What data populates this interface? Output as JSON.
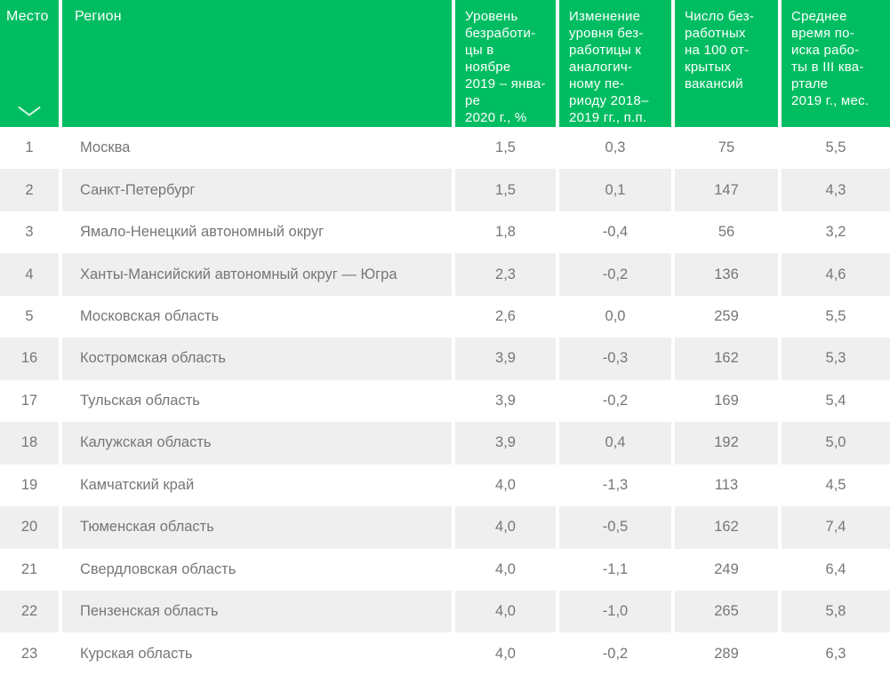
{
  "chart_data": {
    "type": "table",
    "columns": [
      {
        "key": "rank",
        "label": "Место"
      },
      {
        "key": "region",
        "label": "Регион"
      },
      {
        "key": "rate",
        "label": "Уровень\nбезработи-\nцы в\nноябре\n2019 – янва-\nре\n2020 г., %"
      },
      {
        "key": "change",
        "label": "Изменение\nуровня без-\nработицы к\nаналогич-\nному пе-\nриоду 2018–\n2019 гг., п.п."
      },
      {
        "key": "per100",
        "label": "Число без-\nработных\nна 100 от-\nкрытых\nвакансий"
      },
      {
        "key": "search",
        "label": "Среднее\nвремя по-\nиска рабо-\nты в III ква-\nртале\n2019 г., мес."
      }
    ],
    "rows": [
      {
        "rank": "1",
        "region": "Москва",
        "rate": "1,5",
        "change": "0,3",
        "per100": "75",
        "search": "5,5"
      },
      {
        "rank": "2",
        "region": "Санкт-Петербург",
        "rate": "1,5",
        "change": "0,1",
        "per100": "147",
        "search": "4,3"
      },
      {
        "rank": "3",
        "region": "Ямало-Ненецкий автономный округ",
        "rate": "1,8",
        "change": "-0,4",
        "per100": "56",
        "search": "3,2"
      },
      {
        "rank": "4",
        "region": "Ханты-Мансийский автономный округ — Югра",
        "rate": "2,3",
        "change": "-0,2",
        "per100": "136",
        "search": "4,6"
      },
      {
        "rank": "5",
        "region": "Московская область",
        "rate": "2,6",
        "change": "0,0",
        "per100": "259",
        "search": "5,5"
      },
      {
        "rank": "16",
        "region": "Костромская область",
        "rate": "3,9",
        "change": "-0,3",
        "per100": "162",
        "search": "5,3"
      },
      {
        "rank": "17",
        "region": "Тульская область",
        "rate": "3,9",
        "change": "-0,2",
        "per100": "169",
        "search": "5,4"
      },
      {
        "rank": "18",
        "region": "Калужская область",
        "rate": "3,9",
        "change": "0,4",
        "per100": "192",
        "search": "5,0"
      },
      {
        "rank": "19",
        "region": "Камчатский край",
        "rate": "4,0",
        "change": "-1,3",
        "per100": "113",
        "search": "4,5"
      },
      {
        "rank": "20",
        "region": "Тюменская область",
        "rate": "4,0",
        "change": "-0,5",
        "per100": "162",
        "search": "7,4"
      },
      {
        "rank": "21",
        "region": "Свердловская область",
        "rate": "4,0",
        "change": "-1,1",
        "per100": "249",
        "search": "6,4"
      },
      {
        "rank": "22",
        "region": "Пензенская область",
        "rate": "4,0",
        "change": "-1,0",
        "per100": "265",
        "search": "5,8"
      },
      {
        "rank": "23",
        "region": "Курская область",
        "rate": "4,0",
        "change": "-0,2",
        "per100": "289",
        "search": "6,3"
      }
    ],
    "layout": {
      "header_position": "top",
      "alternating_rows": true,
      "sort_column": "rank"
    }
  },
  "icons": {
    "sort_chevron": "chevron-down"
  },
  "colors": {
    "header_bg": "#00bd62",
    "header_text": "#ffffff",
    "row_alt_bg": "#efefef",
    "row_bg": "#ffffff",
    "body_text": "#767676",
    "divider": "#ffffff"
  }
}
